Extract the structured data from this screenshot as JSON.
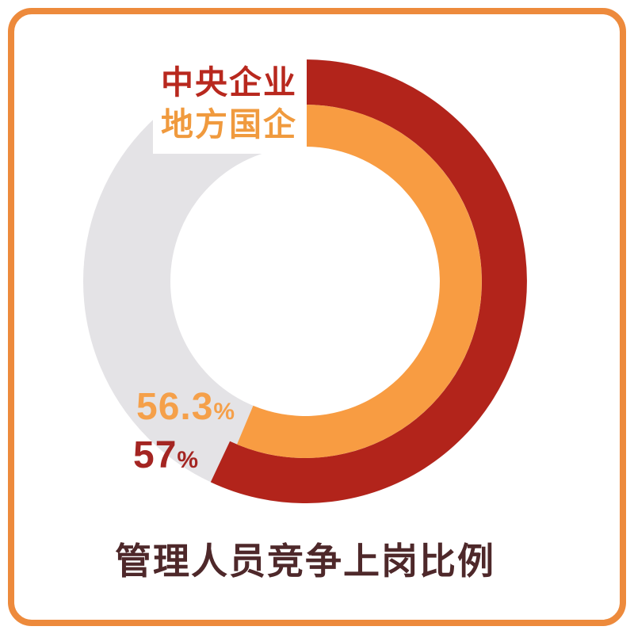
{
  "frame": {
    "border_color": "#ED8A3C",
    "background": "#FFFFFF"
  },
  "chart_data": {
    "type": "donut",
    "title": "管理人员竞争上岗比例",
    "title_color": "#4E282A",
    "direction": "clockwise",
    "start_angle_deg": 0,
    "remainder_color": "#E4E3E6",
    "legend_position": "top-left",
    "series": [
      {
        "name": "中央企业",
        "value": 57,
        "display": "57",
        "unit": "%",
        "ring": "outer",
        "color": "#B2241B",
        "label_color": "#B8281E",
        "value_color": "#A42522"
      },
      {
        "name": "地方国企",
        "value": 56.3,
        "display": "56.3",
        "unit": "%",
        "ring": "inner",
        "color": "#F89C42",
        "label_color": "#F09A3E",
        "value_color": "#F5A04A"
      }
    ]
  }
}
